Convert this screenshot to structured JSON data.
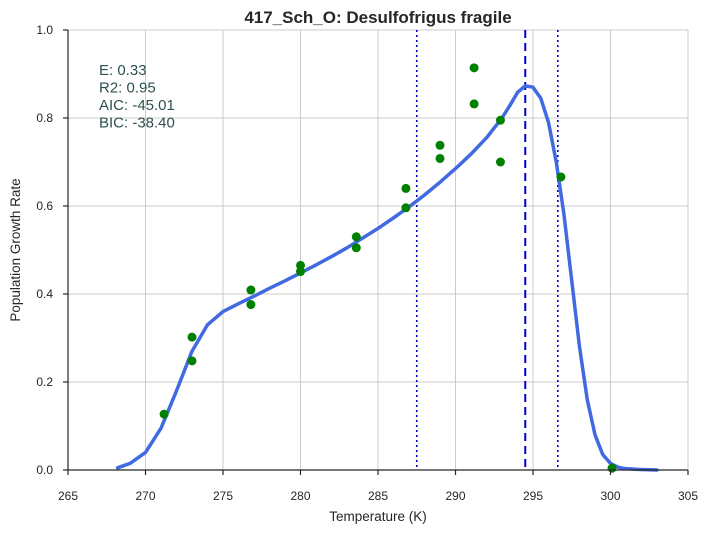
{
  "chart_data": {
    "type": "scatter",
    "title": "417_Sch_O: Desulfofrigus fragile",
    "xlabel": "Temperature (K)",
    "ylabel": "Population Growth Rate",
    "xlim": [
      265,
      305
    ],
    "ylim": [
      0.0,
      1.0
    ],
    "xticks": [
      "265",
      "270",
      "275",
      "280",
      "285",
      "290",
      "295",
      "300",
      "305"
    ],
    "yticks": [
      "0.0",
      "0.2",
      "0.4",
      "0.6",
      "0.8",
      "1.0"
    ],
    "grid": true,
    "stats": [
      {
        "label": "E:",
        "value": "0.33"
      },
      {
        "label": "R2:",
        "value": "0.95"
      },
      {
        "label": "AIC:",
        "value": "-45.01"
      },
      {
        "label": "BIC:",
        "value": "-38.40"
      }
    ],
    "observed_points": {
      "color": "#008000",
      "x": [
        271.2,
        273.0,
        273.0,
        276.8,
        276.8,
        280.0,
        280.0,
        283.6,
        283.6,
        286.8,
        286.8,
        289.0,
        289.0,
        291.2,
        291.2,
        292.9,
        292.9,
        296.8,
        300.1
      ],
      "y": [
        0.127,
        0.302,
        0.248,
        0.409,
        0.376,
        0.465,
        0.451,
        0.53,
        0.505,
        0.596,
        0.64,
        0.738,
        0.708,
        0.914,
        0.832,
        0.795,
        0.7,
        0.666,
        0.004
      ]
    },
    "fitted_curve": {
      "color": "#4169e1",
      "x": [
        268.2,
        269.0,
        270.0,
        271.0,
        272.0,
        273.0,
        274.0,
        275.0,
        276.0,
        277.0,
        278.0,
        279.0,
        280.0,
        281.0,
        282.0,
        283.0,
        284.0,
        285.0,
        286.0,
        287.0,
        288.0,
        289.0,
        290.0,
        291.0,
        292.0,
        293.0,
        293.5,
        294.0,
        294.5,
        295.0,
        295.5,
        296.0,
        296.5,
        297.0,
        297.5,
        298.0,
        298.5,
        299.0,
        299.5,
        300.0,
        300.5,
        301.0,
        302.0,
        303.0
      ],
      "y": [
        0.005,
        0.015,
        0.04,
        0.095,
        0.18,
        0.27,
        0.33,
        0.36,
        0.378,
        0.395,
        0.413,
        0.43,
        0.448,
        0.466,
        0.485,
        0.505,
        0.527,
        0.549,
        0.573,
        0.598,
        0.625,
        0.654,
        0.685,
        0.718,
        0.755,
        0.8,
        0.828,
        0.858,
        0.873,
        0.87,
        0.845,
        0.79,
        0.7,
        0.58,
        0.43,
        0.28,
        0.16,
        0.08,
        0.035,
        0.015,
        0.006,
        0.003,
        0.001,
        0.0
      ]
    },
    "vertical_lines": [
      {
        "x": 287.5,
        "style": "dotted",
        "color": "#0000cd"
      },
      {
        "x": 294.5,
        "style": "dashed",
        "color": "#0000cd"
      },
      {
        "x": 296.6,
        "style": "dotted",
        "color": "#0000cd"
      }
    ]
  }
}
